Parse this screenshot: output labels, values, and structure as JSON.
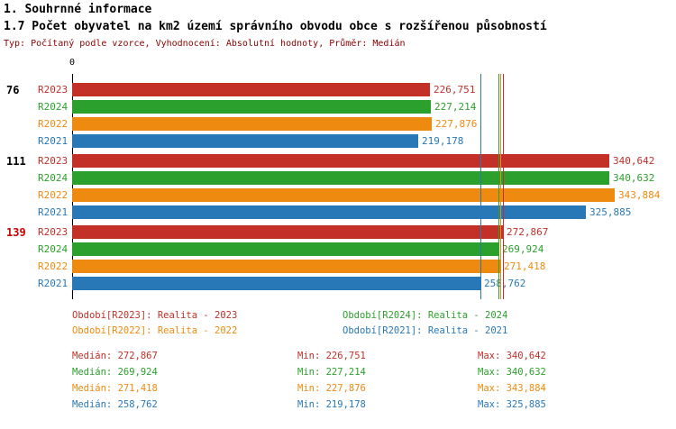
{
  "header": {
    "title": "1. Souhrnné informace",
    "subtitle": "1.7 Počet obyvatel na km2 území správního obvodu obce s rozšířenou působností",
    "meta": "Typ: Počítaný podle vzorce, Vyhodnocení: Absolutní hodnoty, Průměr: Medián"
  },
  "colors": {
    "r2023": "#c23028",
    "r2024": "#2ca02c",
    "r2022": "#ef8a10",
    "r2021": "#2878b8",
    "axis": "#000000",
    "meta_text": "#8b0000",
    "group_highlight": "#cc0000"
  },
  "chart_data": {
    "type": "bar",
    "orientation": "horizontal",
    "value_axis_start_label": "0",
    "grid": false,
    "categories": [
      "76",
      "111",
      "139"
    ],
    "category_colors": [
      "#000000",
      "#000000",
      "#cc0000"
    ],
    "series_order": [
      "R2023",
      "R2024",
      "R2022",
      "R2021"
    ],
    "groups": [
      {
        "label": "76",
        "label_color": "#000000",
        "bars": [
          {
            "series": "R2023",
            "value": 226751,
            "color_key": "r2023"
          },
          {
            "series": "R2024",
            "value": 227214,
            "color_key": "r2024"
          },
          {
            "series": "R2022",
            "value": 227876,
            "color_key": "r2022"
          },
          {
            "series": "R2021",
            "value": 219178,
            "color_key": "r2021"
          }
        ]
      },
      {
        "label": "111",
        "label_color": "#000000",
        "bars": [
          {
            "series": "R2023",
            "value": 340642,
            "color_key": "r2023"
          },
          {
            "series": "R2024",
            "value": 340632,
            "color_key": "r2024"
          },
          {
            "series": "R2022",
            "value": 343884,
            "color_key": "r2022"
          },
          {
            "series": "R2021",
            "value": 325885,
            "color_key": "r2021"
          }
        ]
      },
      {
        "label": "139",
        "label_color": "#cc0000",
        "bars": [
          {
            "series": "R2023",
            "value": 272867,
            "color_key": "r2023"
          },
          {
            "series": "R2024",
            "value": 269924,
            "color_key": "r2024"
          },
          {
            "series": "R2022",
            "value": 271418,
            "color_key": "r2022"
          },
          {
            "series": "R2021",
            "value": 258762,
            "color_key": "r2021"
          }
        ]
      }
    ],
    "medians": [
      {
        "series": "R2023",
        "value": 272867,
        "color_key": "r2023"
      },
      {
        "series": "R2024",
        "value": 269924,
        "color_key": "r2024"
      },
      {
        "series": "R2022",
        "value": 271418,
        "color_key": "r2022"
      },
      {
        "series": "R2021",
        "value": 258762,
        "color_key": "r2021"
      }
    ]
  },
  "legend": {
    "items": [
      {
        "label": "Období[R2023]: Realita - 2023",
        "color_key": "r2023",
        "row": 0,
        "col": 0
      },
      {
        "label": "Období[R2024]: Realita - 2024",
        "color_key": "r2024",
        "row": 0,
        "col": 1
      },
      {
        "label": "Období[R2022]: Realita - 2022",
        "color_key": "r2022",
        "row": 1,
        "col": 0
      },
      {
        "label": "Období[R2021]: Realita - 2021",
        "color_key": "r2021",
        "row": 1,
        "col": 1
      }
    ]
  },
  "stats": {
    "labels": {
      "median": "Medián",
      "min": "Min",
      "max": "Max"
    },
    "rows": [
      {
        "median": 272867,
        "min": 226751,
        "max": 340642,
        "color_key": "r2023"
      },
      {
        "median": 269924,
        "min": 227214,
        "max": 340632,
        "color_key": "r2024"
      },
      {
        "median": 271418,
        "min": 227876,
        "max": 343884,
        "color_key": "r2022"
      },
      {
        "median": 258762,
        "min": 219178,
        "max": 325885,
        "color_key": "r2021"
      }
    ]
  }
}
